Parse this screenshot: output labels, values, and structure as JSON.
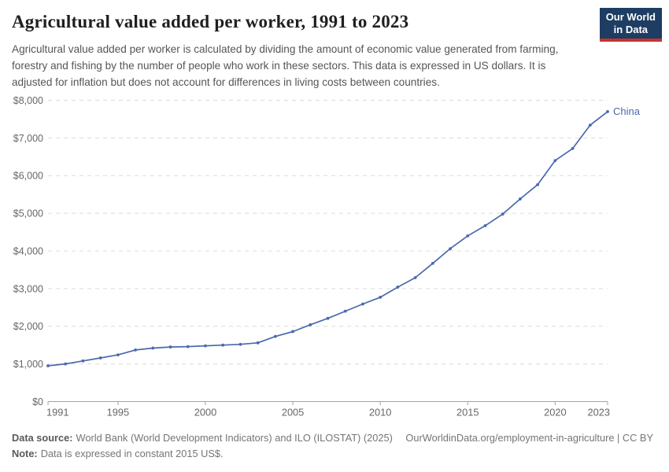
{
  "header": {
    "title": "Agricultural value added per worker, 1991 to 2023",
    "subtitle": "Agricultural value added per worker is calculated by dividing the amount of economic value generated from farming, forestry and fishing by the number of people who work in these sectors. This data is expressed in US dollars. It is adjusted for inflation but does not account for differences in living costs between countries.",
    "logo": {
      "line1": "Our World",
      "line2": "in Data",
      "bg_color": "#1d3d63",
      "accent_color": "#c5342e"
    }
  },
  "chart_data": {
    "type": "line",
    "title": "Agricultural value added per worker, 1991 to 2023",
    "series": [
      {
        "name": "China",
        "x": [
          1991,
          1992,
          1993,
          1994,
          1995,
          1996,
          1997,
          1998,
          1999,
          2000,
          2001,
          2002,
          2003,
          2004,
          2005,
          2006,
          2007,
          2008,
          2009,
          2010,
          2011,
          2012,
          2013,
          2014,
          2015,
          2016,
          2017,
          2018,
          2019,
          2020,
          2021,
          2022,
          2023
        ],
        "values": [
          950,
          1000,
          1080,
          1160,
          1240,
          1370,
          1420,
          1450,
          1460,
          1480,
          1500,
          1520,
          1560,
          1730,
          1860,
          2040,
          2210,
          2400,
          2590,
          2770,
          3040,
          3290,
          3670,
          4060,
          4400,
          4670,
          4980,
          5380,
          5760,
          6400,
          6720,
          7340,
          7700
        ],
        "color": "#4a69ad"
      }
    ],
    "entity_label": "China",
    "unit_prefix": "$",
    "xlabel": "",
    "ylabel": "",
    "xlim": [
      1991,
      2023
    ],
    "ylim": [
      0,
      8000
    ],
    "yticks": [
      0,
      1000,
      2000,
      3000,
      4000,
      5000,
      6000,
      7000,
      8000
    ],
    "ytick_labels": [
      "$0",
      "$1,000",
      "$2,000",
      "$3,000",
      "$4,000",
      "$5,000",
      "$6,000",
      "$7,000",
      "$8,000"
    ],
    "xticks": [
      1991,
      1995,
      2000,
      2005,
      2010,
      2015,
      2020,
      2023
    ],
    "xtick_labels": [
      "1991",
      "1995",
      "2000",
      "2005",
      "2010",
      "2015",
      "2020",
      "2023"
    ],
    "grid": "horizontal-dashed",
    "grid_color": "#dcdcdc",
    "axis_color": "#a3a3a3",
    "tick_label_color": "#666666",
    "legend_position": "end-of-line"
  },
  "footer": {
    "datasource_label": "Data source:",
    "datasource_text": "World Bank (World Development Indicators) and ILO (ILOSTAT) (2025)",
    "url_text": "OurWorldinData.org/employment-in-agriculture | CC BY",
    "note_label": "Note:",
    "note_text": "Data is expressed in constant 2015 US$."
  }
}
